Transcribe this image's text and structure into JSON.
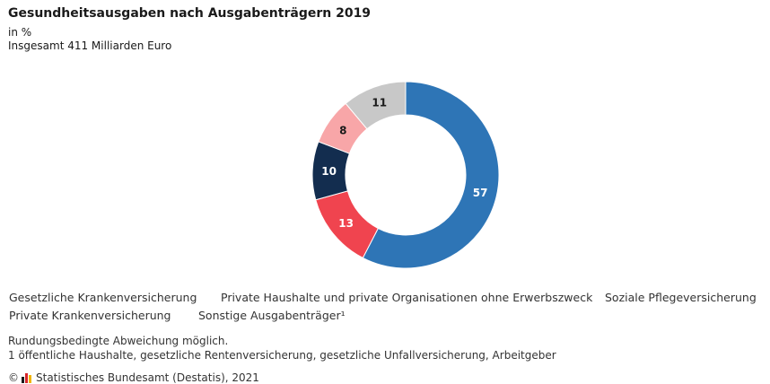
{
  "header": {
    "title": "Gesundheitsausgaben nach Ausgabenträgern 2019",
    "unit": "in %",
    "total": "Insgesamt 411 Milliarden Euro"
  },
  "chart_data": {
    "type": "pie",
    "donut": true,
    "start_angle": "12 o'clock",
    "direction": "clockwise",
    "categories": [
      "Gesetzliche Krankenversicherung",
      "Private Haushalte und private Organisationen ohne Erwerbszweck",
      "Soziale Pflegeversicherung",
      "Private Krankenversicherung",
      "Sonstige Ausgabenträger¹"
    ],
    "values": [
      57,
      13,
      10,
      8,
      11
    ],
    "labels": [
      "57",
      "13",
      "10",
      "8",
      "11"
    ],
    "colors": [
      "#2e75b6",
      "#f0444f",
      "#132d4f",
      "#f8a6a8",
      "#c8c8c8"
    ],
    "label_colors": [
      "#ffffff",
      "#ffffff",
      "#ffffff",
      "#1a1a1a",
      "#1a1a1a"
    ],
    "legend_position": "bottom"
  },
  "legend": {
    "items": [
      {
        "label": "Gesetzliche Krankenversicherung",
        "color": "#2e75b6"
      },
      {
        "label": "Private Haushalte und private Organisationen ohne Erwerbszweck",
        "color": "#f0444f"
      },
      {
        "label": "Soziale Pflegeversicherung",
        "color": "#132d4f"
      },
      {
        "label": "Private Krankenversicherung",
        "color": "#f8a6a8"
      },
      {
        "label": "Sonstige Ausgabenträger¹",
        "color": "#c8c8c8"
      }
    ]
  },
  "notes": {
    "rounding": "Rundungsbedingte Abweichung möglich.",
    "footnote": "1 öffentliche Haushalte, gesetzliche Rentenversicherung, gesetzliche Unfallversicherung, Arbeitgeber"
  },
  "source": {
    "copyright": "©",
    "text": "Statistisches Bundesamt (Destatis), 2021"
  }
}
